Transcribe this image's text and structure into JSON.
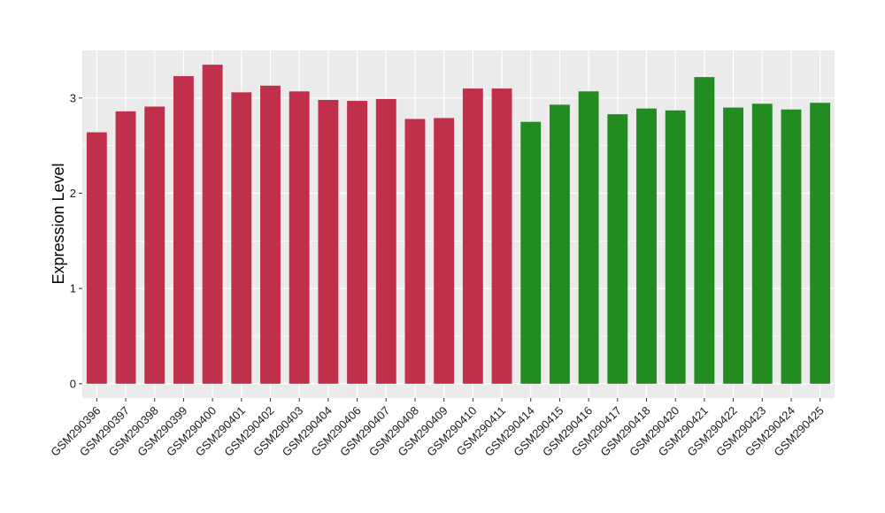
{
  "chart_data": {
    "type": "bar",
    "title": "",
    "xlabel": "",
    "ylabel": "Expression Level",
    "ylim": [
      -0.15,
      3.5
    ],
    "yticks": [
      0,
      1,
      2,
      3
    ],
    "grid": true,
    "legend": "none",
    "colors": {
      "group1": "#c1304a",
      "group2": "#228b22",
      "panel": "#ebebeb",
      "grid": "#ffffff"
    },
    "categories": [
      "GSM290396",
      "GSM290397",
      "GSM290398",
      "GSM290399",
      "GSM290400",
      "GSM290401",
      "GSM290402",
      "GSM290403",
      "GSM290404",
      "GSM290406",
      "GSM290407",
      "GSM290408",
      "GSM290409",
      "GSM290410",
      "GSM290411",
      "GSM290414",
      "GSM290415",
      "GSM290416",
      "GSM290417",
      "GSM290418",
      "GSM290420",
      "GSM290421",
      "GSM290422",
      "GSM290423",
      "GSM290424",
      "GSM290425"
    ],
    "values": [
      2.64,
      2.86,
      2.91,
      3.23,
      3.35,
      3.06,
      3.13,
      3.07,
      2.98,
      2.97,
      2.99,
      2.78,
      2.79,
      3.1,
      3.1,
      2.75,
      2.93,
      3.07,
      2.83,
      2.89,
      2.87,
      3.22,
      2.9,
      2.94,
      2.88,
      2.95
    ],
    "groups": [
      1,
      1,
      1,
      1,
      1,
      1,
      1,
      1,
      1,
      1,
      1,
      1,
      1,
      1,
      1,
      2,
      2,
      2,
      2,
      2,
      2,
      2,
      2,
      2,
      2,
      2
    ]
  }
}
